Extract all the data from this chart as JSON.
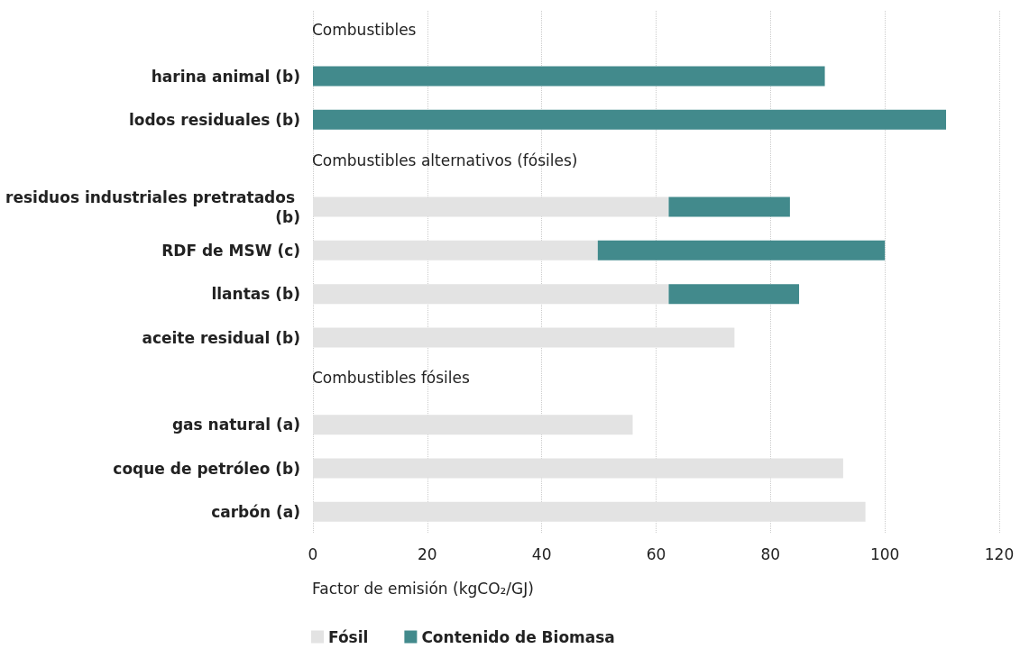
{
  "chart_data": {
    "type": "bar",
    "orientation": "horizontal",
    "stacked": true,
    "categories": [
      null,
      "harina animal (b)",
      "lodos residuales (b)",
      null,
      "residuos industriales pretratados (b)",
      "RDF de MSW (c)",
      "llantas (b)",
      "aceite residual (b)",
      null,
      "gas natural (a)",
      "coque de petróleo (b)",
      "carbón (a)"
    ],
    "series": [
      {
        "name": "Fósil",
        "color": "#e3e3e3",
        "values": [
          null,
          null,
          null,
          null,
          62.2,
          49.8,
          62.2,
          73.7,
          null,
          55.9,
          92.7,
          96.6
        ]
      },
      {
        "name": "Contenido de Biomasa",
        "color": "#428a8c",
        "values": [
          null,
          89.5,
          110.7,
          null,
          21.2,
          50.2,
          22.8,
          null,
          null,
          null,
          null,
          null
        ]
      }
    ],
    "annotations": [
      "Combustibles",
      "Combustibles alternativos (fósiles)",
      "Combustibles fósiles"
    ],
    "xlabel": "Factor de emisión (kgCO₂/GJ)",
    "xlim": [
      0,
      120
    ],
    "xticks": [
      0,
      20,
      40,
      60,
      80,
      100,
      120
    ],
    "grid": "x",
    "legend": "bottom left"
  }
}
